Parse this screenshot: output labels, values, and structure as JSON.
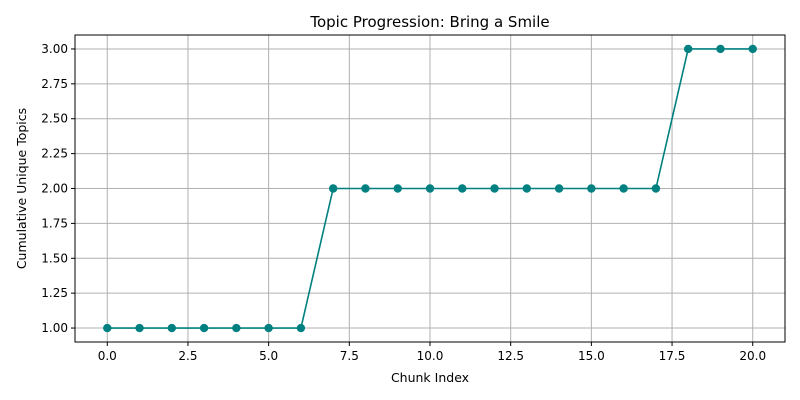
{
  "chart_data": {
    "type": "line",
    "title": "Topic Progression: Bring a Smile",
    "xlabel": "Chunk Index",
    "ylabel": "Cumulative Unique Topics",
    "x": [
      0,
      1,
      2,
      3,
      4,
      5,
      6,
      7,
      8,
      9,
      10,
      11,
      12,
      13,
      14,
      15,
      16,
      17,
      18,
      19,
      20
    ],
    "series": [
      {
        "values": [
          1,
          1,
          1,
          1,
          1,
          1,
          1,
          2,
          2,
          2,
          2,
          2,
          2,
          2,
          2,
          2,
          2,
          2,
          3,
          3,
          3
        ],
        "color": "#008080",
        "marker": "circle"
      }
    ],
    "xlim": [
      -1,
      21
    ],
    "ylim": [
      0.9,
      3.1
    ],
    "xticks": [
      0.0,
      2.5,
      5.0,
      7.5,
      10.0,
      12.5,
      15.0,
      17.5,
      20.0
    ],
    "xtick_labels": [
      "0.0",
      "2.5",
      "5.0",
      "7.5",
      "10.0",
      "12.5",
      "15.0",
      "17.5",
      "20.0"
    ],
    "yticks": [
      1.0,
      1.25,
      1.5,
      1.75,
      2.0,
      2.25,
      2.5,
      2.75,
      3.0
    ],
    "ytick_labels": [
      "1.00",
      "1.25",
      "1.50",
      "1.75",
      "2.00",
      "2.25",
      "2.50",
      "2.75",
      "3.00"
    ],
    "grid": true
  }
}
